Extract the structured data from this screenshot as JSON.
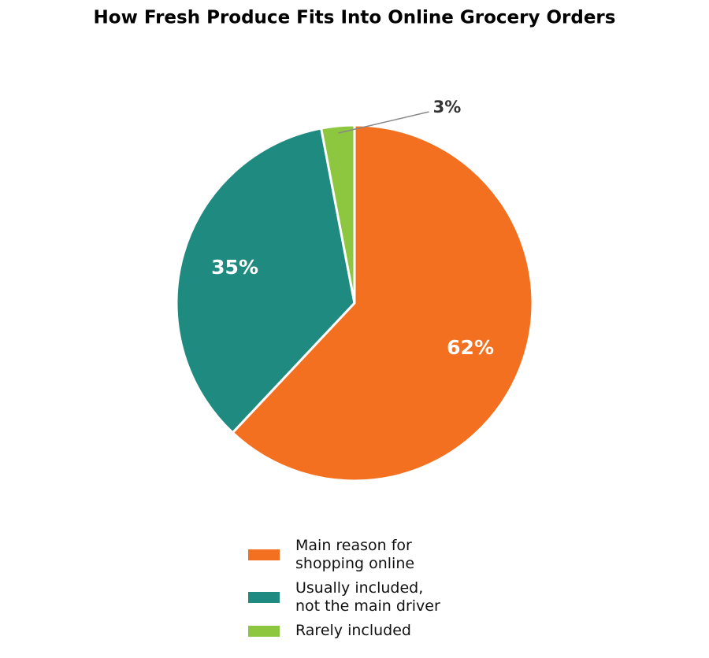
{
  "chart_data": {
    "type": "pie",
    "title": "How Fresh Produce Fits Into Online Grocery Orders",
    "categories": [
      "Main reason for\nshopping online",
      "Usually included,\nnot the main driver",
      "Rarely included"
    ],
    "values": [
      62,
      35,
      3
    ],
    "value_labels": [
      "62%",
      "35%",
      "3%"
    ],
    "colors": [
      "#f37021",
      "#1f8a80",
      "#8dc63f"
    ],
    "legend": "bottom"
  }
}
